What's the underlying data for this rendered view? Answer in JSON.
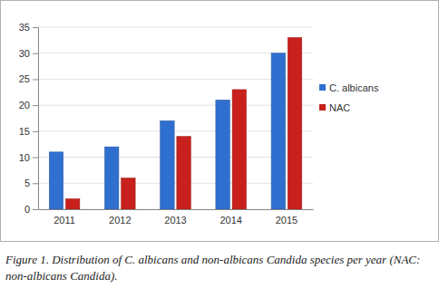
{
  "chart_data": {
    "type": "bar",
    "title": "Figure 1. Distribution of C. albicans and non-albicans Candida species per year (NAC: non-albicans Candida).",
    "categories": [
      "2011",
      "2012",
      "2013",
      "2014",
      "2015"
    ],
    "series": [
      {
        "name": "C. albicans",
        "color": "#2f6fd0",
        "values": [
          11,
          12,
          17,
          21,
          30
        ]
      },
      {
        "name": "NAC",
        "color": "#c8201c",
        "values": [
          2,
          6,
          14,
          23,
          33
        ]
      }
    ],
    "ylim": [
      0,
      35
    ],
    "yticks": [
      0,
      5,
      10,
      15,
      20,
      25,
      30,
      35
    ],
    "grid": true,
    "legend": "right"
  }
}
